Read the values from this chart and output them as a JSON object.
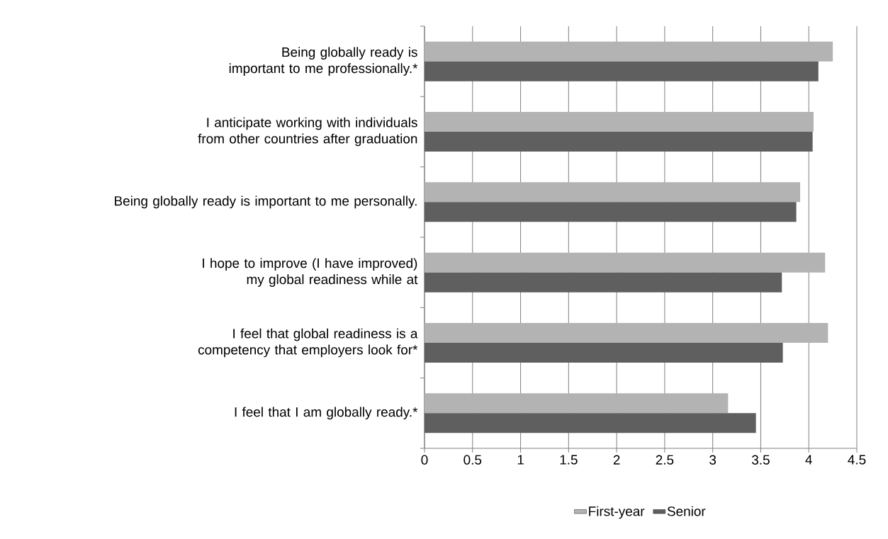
{
  "chart_data": {
    "type": "bar",
    "orientation": "horizontal",
    "categories": [
      "Being globally ready is important to me professionally.*",
      "I anticipate working with individuals from other countries after graduation",
      "Being globally ready is important to me personally.",
      "I hope to improve (I have improved) my global readiness while at",
      "I feel that global readiness is a competency that employers look for*",
      "I feel that I am globally ready.*"
    ],
    "series": [
      {
        "name": "First-year",
        "color": "#b3b3b3",
        "values": [
          4.25,
          4.05,
          3.91,
          4.17,
          4.2,
          3.16
        ]
      },
      {
        "name": "Senior",
        "color": "#5f5f5f",
        "values": [
          4.1,
          4.04,
          3.87,
          3.72,
          3.73,
          3.45
        ]
      }
    ],
    "xlim": [
      0,
      4.5
    ],
    "xticks": [
      0,
      0.5,
      1,
      1.5,
      2,
      2.5,
      3,
      3.5,
      4,
      4.5
    ],
    "grid": "x",
    "legend": "bottom"
  }
}
